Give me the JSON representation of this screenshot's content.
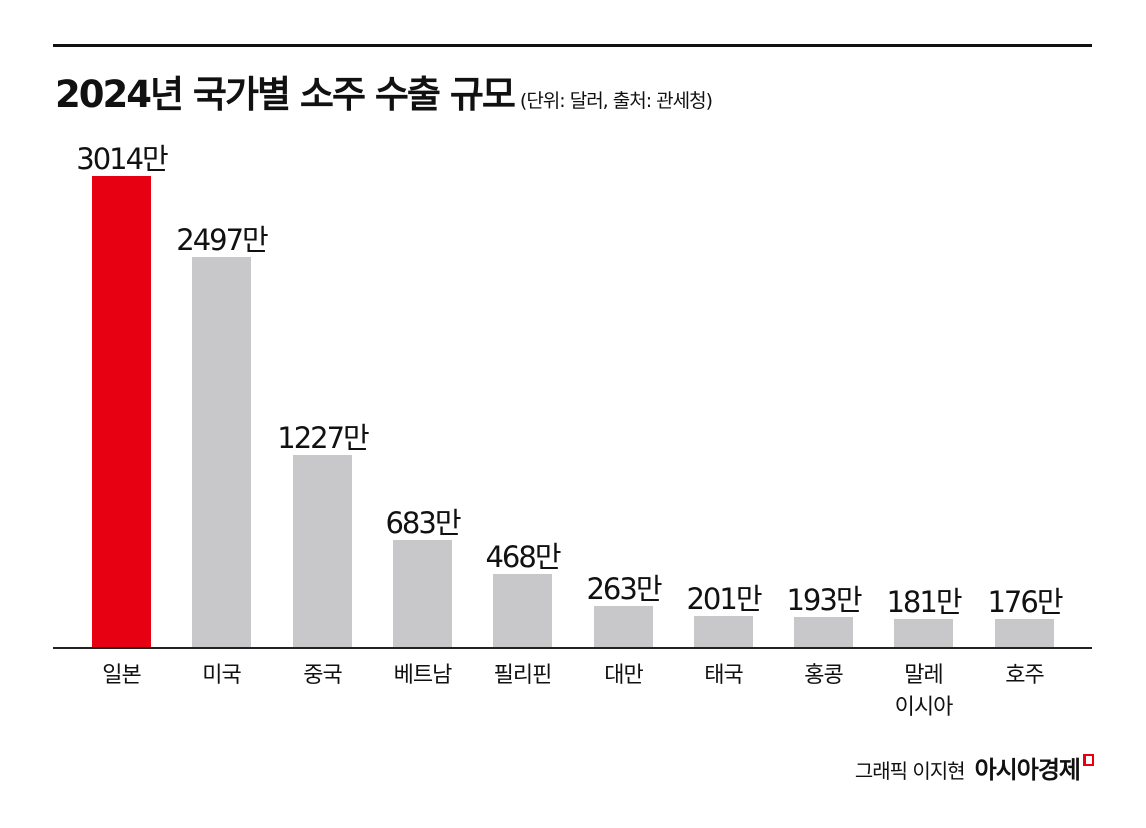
{
  "header": {
    "title": "2024년 국가별 소주 수출 규모",
    "subtitle": "(단위: 달러, 출처: 관세청)"
  },
  "colors": {
    "highlight": "#e60012",
    "bar": "#c8c8ca",
    "axis": "#222222"
  },
  "chart_data": {
    "type": "bar",
    "title": "2024년 국가별 소주 수출 규모",
    "subtitle": "(단위: 달러, 출처: 관세청)",
    "unit": "달러 (만 = 10,000)",
    "xlabel": "",
    "ylabel": "",
    "categories": [
      "일본",
      "미국",
      "중국",
      "베트남",
      "필리핀",
      "대만",
      "태국",
      "홍콩",
      "말레이시아",
      "호주"
    ],
    "values": [
      30140000,
      24970000,
      12270000,
      6830000,
      4680000,
      2630000,
      2010000,
      1930000,
      1810000,
      1760000
    ],
    "value_labels": [
      "3014만",
      "2497만",
      "1227만",
      "683만",
      "468만",
      "263만",
      "201만",
      "193만",
      "181만",
      "176만"
    ],
    "highlight_index": 0,
    "grid": false,
    "legend": "none"
  },
  "bars": [
    {
      "label": "일본",
      "value": 3014,
      "value_label": "3014만",
      "highlight": true
    },
    {
      "label": "미국",
      "value": 2497,
      "value_label": "2497만"
    },
    {
      "label": "중국",
      "value": 1227,
      "value_label": "1227만"
    },
    {
      "label": "베트남",
      "value": 683,
      "value_label": "683만"
    },
    {
      "label": "필리핀",
      "value": 468,
      "value_label": "468만"
    },
    {
      "label": "대만",
      "value": 263,
      "value_label": "263만"
    },
    {
      "label": "태국",
      "value": 201,
      "value_label": "201만"
    },
    {
      "label": "홍콩",
      "value": 193,
      "value_label": "193만"
    },
    {
      "label": "말레\n이시아",
      "value": 181,
      "value_label": "181만"
    },
    {
      "label": "호주",
      "value": 176,
      "value_label": "176만"
    }
  ],
  "footer": {
    "credit": "그래픽 이지현",
    "brand": "아시아경제"
  }
}
